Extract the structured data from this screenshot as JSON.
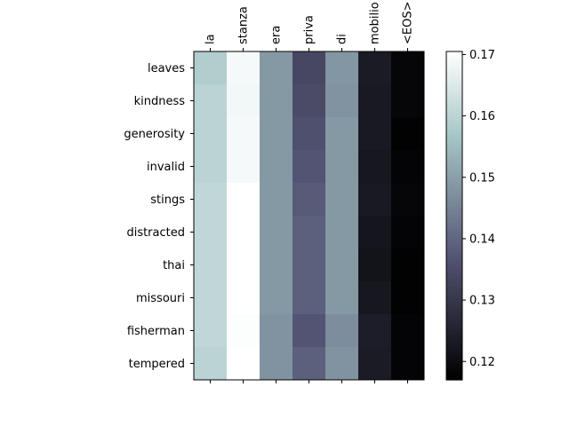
{
  "chart_data": {
    "type": "heatmap",
    "title": "",
    "xlabel": "",
    "ylabel": "",
    "x_tick_position": "top",
    "grid": false,
    "x_categories": [
      "la",
      "stanza",
      "era",
      "priva",
      "di",
      "mobilio",
      "<EOS>"
    ],
    "y_categories": [
      "leaves",
      "kindness",
      "generosity",
      "invalid",
      "stings",
      "distracted",
      "thai",
      "missouri",
      "fisherman",
      "tempered"
    ],
    "values": [
      [
        0.1585,
        0.169,
        0.149,
        0.134,
        0.1485,
        0.1235,
        0.1185
      ],
      [
        0.16,
        0.1685,
        0.149,
        0.135,
        0.148,
        0.123,
        0.1185
      ],
      [
        0.16,
        0.169,
        0.149,
        0.136,
        0.149,
        0.123,
        0.1175
      ],
      [
        0.16,
        0.169,
        0.149,
        0.137,
        0.149,
        0.1225,
        0.118
      ],
      [
        0.161,
        0.171,
        0.149,
        0.138,
        0.149,
        0.123,
        0.1185
      ],
      [
        0.161,
        0.171,
        0.149,
        0.139,
        0.149,
        0.122,
        0.118
      ],
      [
        0.161,
        0.171,
        0.149,
        0.139,
        0.149,
        0.1215,
        0.1175
      ],
      [
        0.161,
        0.171,
        0.149,
        0.139,
        0.149,
        0.1225,
        0.1175
      ],
      [
        0.161,
        0.17,
        0.148,
        0.137,
        0.147,
        0.124,
        0.118
      ],
      [
        0.16,
        0.1705,
        0.148,
        0.139,
        0.148,
        0.1235,
        0.118
      ]
    ],
    "colormap": "bone",
    "colorbar": {
      "vmin": 0.117,
      "vmax": 0.1705,
      "ticks": [
        0.12,
        0.13,
        0.14,
        0.15,
        0.16,
        0.17
      ],
      "tick_labels": [
        "0.12",
        "0.13",
        "0.14",
        "0.15",
        "0.16",
        "0.17"
      ]
    }
  }
}
